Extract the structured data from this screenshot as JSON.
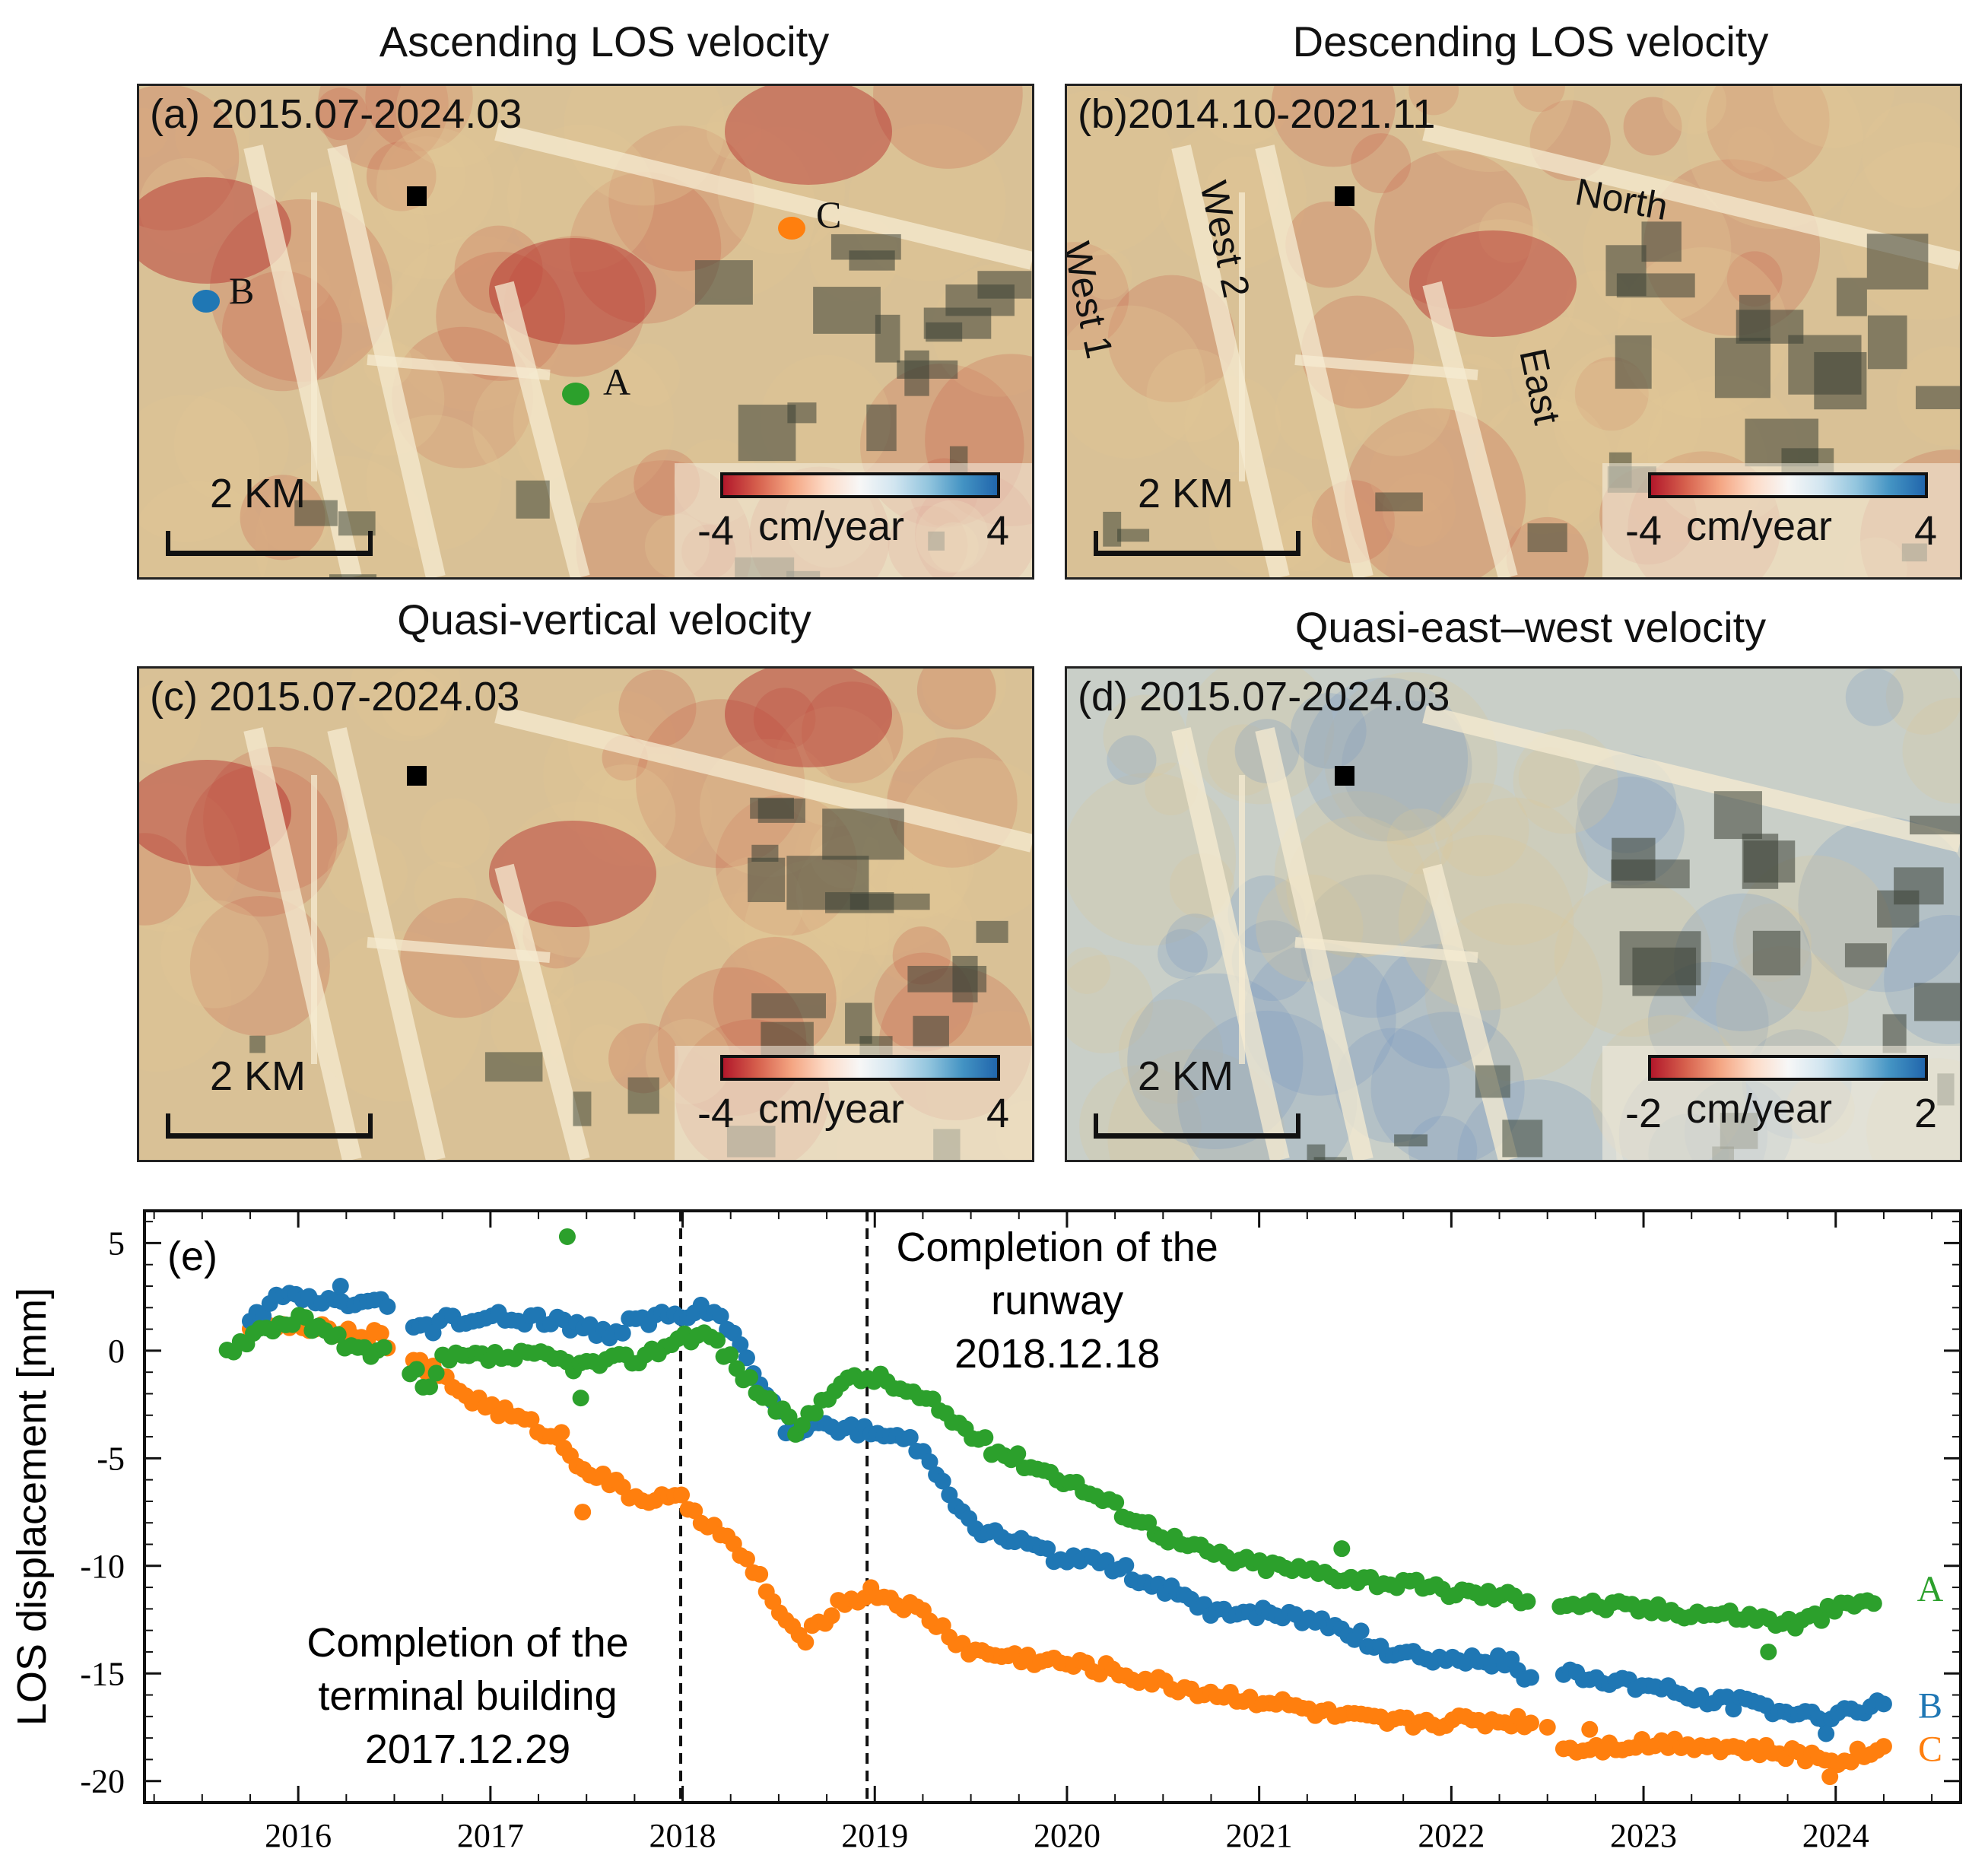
{
  "panels": [
    {
      "id": "a",
      "title": "Ascending LOS velocity",
      "label": "(a) 2015.07-2024.03",
      "scale": "2 KM",
      "cb_min": "-4",
      "cb_max": "4",
      "cb_unit": "cm/year"
    },
    {
      "id": "b",
      "title": "Descending LOS velocity",
      "label": "(b)2014.10-2021.11",
      "scale": "2 KM",
      "cb_min": "-4",
      "cb_max": "4",
      "cb_unit": "cm/year"
    },
    {
      "id": "c",
      "title": "Quasi-vertical velocity",
      "label": "(c) 2015.07-2024.03",
      "scale": "2 KM",
      "cb_min": "-4",
      "cb_max": "4",
      "cb_unit": "cm/year"
    },
    {
      "id": "d",
      "title": "Quasi-east–west velocity",
      "label": "(d) 2015.07-2024.03",
      "scale": "2 KM",
      "cb_min": "-2",
      "cb_max": "2",
      "cb_unit": "cm/year"
    }
  ],
  "points": {
    "a": "A",
    "b": "B",
    "c": "C"
  },
  "runways": {
    "west1": "West 1",
    "west2": "West 2",
    "north": "North",
    "east": "East"
  },
  "colors": {
    "A": "#2ca02c",
    "B": "#1f77b4",
    "C": "#ff7f0e",
    "cb": [
      "#b2182b",
      "#d6604d",
      "#f4a582",
      "#fddbc7",
      "#f7f7f7",
      "#d1e5f0",
      "#92c5de",
      "#4393c3",
      "#2166ac"
    ]
  },
  "chart_data": {
    "type": "scatter",
    "panel_label": "(e)",
    "ylabel": "LOS displacement [mm]",
    "xlim": [
      2015.2,
      2024.65
    ],
    "ylim": [
      -21,
      6.5
    ],
    "xticks": [
      "2016",
      "2017",
      "2018",
      "2019",
      "2020",
      "2021",
      "2022",
      "2023",
      "2024"
    ],
    "yticks": [
      "5",
      "0",
      "-5",
      "-10",
      "-15",
      "-20"
    ],
    "series": [
      {
        "name": "A",
        "keys": [
          [
            2015.63,
            0
          ],
          [
            2015.8,
            1
          ],
          [
            2016.0,
            1.5
          ],
          [
            2016.3,
            0
          ],
          [
            2016.45,
            0
          ],
          [
            2016.62,
            -1
          ],
          [
            2016.67,
            -2.3
          ],
          [
            2016.75,
            -0.4
          ],
          [
            2017.0,
            -0.3
          ],
          [
            2017.3,
            -0.3
          ],
          [
            2017.45,
            -0.7
          ],
          [
            2017.8,
            -0.3
          ],
          [
            2018.0,
            0.7
          ],
          [
            2018.15,
            0.7
          ],
          [
            2018.3,
            -1
          ],
          [
            2018.5,
            -2.8
          ],
          [
            2018.6,
            -3.8
          ],
          [
            2018.8,
            -1.5
          ],
          [
            2019.0,
            -1.2
          ],
          [
            2019.3,
            -2.5
          ],
          [
            2019.6,
            -4.5
          ],
          [
            2020.0,
            -6
          ],
          [
            2020.3,
            -7.5
          ],
          [
            2020.6,
            -9
          ],
          [
            2020.9,
            -9.8
          ],
          [
            2021.3,
            -10.3
          ],
          [
            2021.7,
            -10.8
          ],
          [
            2022.0,
            -11.2
          ],
          [
            2022.4,
            -11.5
          ],
          [
            2022.6,
            -11.7
          ],
          [
            2023.0,
            -12
          ],
          [
            2023.5,
            -12.3
          ],
          [
            2023.8,
            -12.7
          ],
          [
            2024.0,
            -12
          ],
          [
            2024.23,
            -11.5
          ]
        ],
        "outliers": [
          [
            2017.4,
            5.3
          ],
          [
            2017.47,
            -2.2
          ],
          [
            2021.43,
            -9.2
          ],
          [
            2023.65,
            -14
          ]
        ]
      },
      {
        "name": "B",
        "keys": [
          [
            2015.75,
            1.2
          ],
          [
            2015.9,
            2.5
          ],
          [
            2016.2,
            2.3
          ],
          [
            2016.45,
            2.2
          ],
          [
            2016.6,
            1.2
          ],
          [
            2016.7,
            0.8
          ],
          [
            2016.75,
            1.5
          ],
          [
            2017.3,
            1.5
          ],
          [
            2017.6,
            0.8
          ],
          [
            2017.8,
            1.5
          ],
          [
            2018.0,
            1.5
          ],
          [
            2018.1,
            2
          ],
          [
            2018.25,
            1
          ],
          [
            2018.4,
            -1.3
          ],
          [
            2018.55,
            -3.8
          ],
          [
            2018.8,
            -3.5
          ],
          [
            2019.0,
            -3.8
          ],
          [
            2019.2,
            -4.2
          ],
          [
            2019.35,
            -5.8
          ],
          [
            2019.5,
            -8.2
          ],
          [
            2019.8,
            -9
          ],
          [
            2020.0,
            -9.8
          ],
          [
            2020.2,
            -9.8
          ],
          [
            2020.5,
            -11
          ],
          [
            2020.7,
            -12
          ],
          [
            2021.0,
            -12.2
          ],
          [
            2021.3,
            -12.5
          ],
          [
            2021.5,
            -13.2
          ],
          [
            2021.7,
            -14
          ],
          [
            2022.0,
            -14.3
          ],
          [
            2022.3,
            -14.5
          ],
          [
            2022.4,
            -15.3
          ],
          [
            2022.6,
            -15
          ],
          [
            2023.0,
            -15.5
          ],
          [
            2023.3,
            -16.2
          ],
          [
            2023.6,
            -16.5
          ],
          [
            2023.9,
            -17
          ],
          [
            2024.1,
            -16.6
          ],
          [
            2024.25,
            -16.5
          ]
        ],
        "outliers": [
          [
            2016.22,
            3
          ],
          [
            2023.95,
            -17.8
          ]
        ]
      },
      {
        "name": "C",
        "keys": [
          [
            2015.75,
            1.3
          ],
          [
            2016.0,
            1.2
          ],
          [
            2016.4,
            0.8
          ],
          [
            2016.6,
            -0.5
          ],
          [
            2016.7,
            -1
          ],
          [
            2016.9,
            -2.2
          ],
          [
            2017.1,
            -3
          ],
          [
            2017.3,
            -3.8
          ],
          [
            2017.5,
            -5.5
          ],
          [
            2017.75,
            -6.8
          ],
          [
            2018.0,
            -7
          ],
          [
            2018.2,
            -8.5
          ],
          [
            2018.4,
            -10.5
          ],
          [
            2018.55,
            -13
          ],
          [
            2018.65,
            -13.3
          ],
          [
            2018.8,
            -11.8
          ],
          [
            2019.0,
            -11.2
          ],
          [
            2019.25,
            -12.2
          ],
          [
            2019.5,
            -14
          ],
          [
            2019.8,
            -14.3
          ],
          [
            2020.2,
            -14.8
          ],
          [
            2020.5,
            -15.5
          ],
          [
            2020.8,
            -16
          ],
          [
            2021.0,
            -16.2
          ],
          [
            2021.4,
            -17
          ],
          [
            2021.7,
            -17.3
          ],
          [
            2022.0,
            -17.2
          ],
          [
            2022.4,
            -17.2
          ],
          [
            2022.6,
            -18.5
          ],
          [
            2022.9,
            -18.3
          ],
          [
            2023.2,
            -18.2
          ],
          [
            2023.5,
            -18.5
          ],
          [
            2023.8,
            -18.8
          ],
          [
            2024.0,
            -19
          ],
          [
            2024.25,
            -18.5
          ]
        ],
        "outliers": [
          [
            2016.25,
            0.8
          ],
          [
            2017.37,
            -3.8
          ],
          [
            2017.48,
            -7.5
          ],
          [
            2022.5,
            -17.5
          ],
          [
            2022.72,
            -17.6
          ],
          [
            2023.97,
            -19.8
          ]
        ]
      }
    ],
    "vlines": [
      {
        "x": 2017.99,
        "label": [
          "Completion of the",
          "terminal building",
          "2017.12.29"
        ]
      },
      {
        "x": 2018.96,
        "label": [
          "Completion of the",
          "runway",
          "2018.12.18"
        ]
      }
    ]
  }
}
